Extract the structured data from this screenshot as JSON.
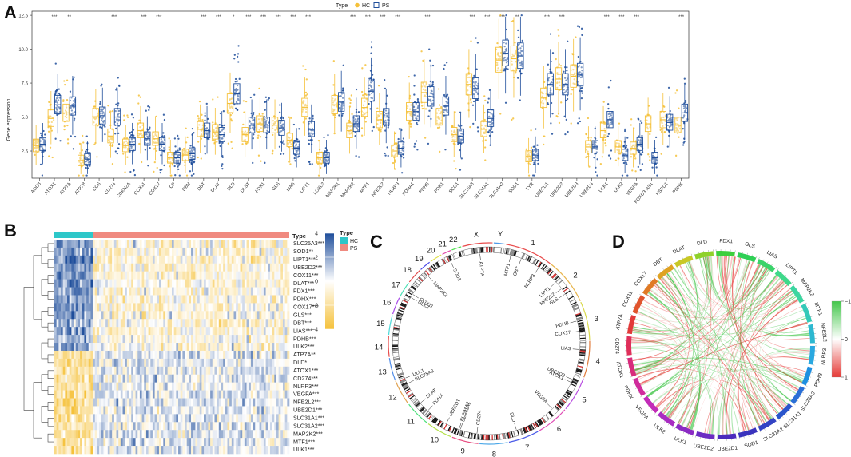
{
  "panels": {
    "a": "A",
    "b": "B",
    "c": "C",
    "d": "D"
  },
  "colors": {
    "hc": "#f5c13a",
    "ps": "#1f4e9b",
    "heat_high": "#1f4e9b",
    "heat_mid": "#ffffff",
    "heat_low": "#f5c13a",
    "annot_hc": "#2ec7c9",
    "annot_ps": "#f08a80",
    "chord_pos": "#e53935",
    "chord_neg": "#43c64a"
  },
  "legend_a": {
    "title": "Type",
    "hc": "HC",
    "ps": "PS"
  },
  "chart_data": [
    {
      "type": "boxplot",
      "title": "",
      "ylabel": "Gene expression",
      "xlabel": "",
      "ylim": [
        0.5,
        12.8
      ],
      "yticks": [
        "2.5",
        "5.0",
        "7.5",
        "10.0",
        "12.5"
      ],
      "ytick_values": [
        2.5,
        5.0,
        7.5,
        10.0,
        12.5
      ],
      "series": [
        {
          "name": "HC"
        },
        {
          "name": "PS"
        }
      ],
      "categories": [
        "AOC3",
        "ATOX1",
        "ATP7A",
        "ATP7B",
        "CCS",
        "CD274",
        "CDKN2A",
        "COX11",
        "COX17",
        "CP",
        "DBH",
        "DBT",
        "DLAT",
        "DLD",
        "DLST",
        "FDX1",
        "GLS",
        "LIAS",
        "LIPT1",
        "LOXL2",
        "MAP2K1",
        "MAP2K2",
        "MTF1",
        "NFE2L2",
        "NLRP3",
        "PDHA1",
        "PDHB",
        "PDK1",
        "SCO1",
        "SLC25A3",
        "SLC31A1",
        "SLC31A2",
        "SOD1",
        "TYR",
        "UBE2D1",
        "UBE2D2",
        "UBE2D3",
        "UBE2D4",
        "ULK1",
        "ULK2",
        "VEGFA",
        "FOXO3-AS1",
        "HSPD1",
        "PDHX"
      ],
      "hc_median": [
        2.9,
        4.9,
        5.3,
        1.8,
        5.0,
        3.6,
        2.9,
        4.0,
        3.4,
        2.0,
        2.2,
        4.1,
        3.9,
        6.0,
        3.7,
        4.5,
        4.4,
        3.3,
        5.7,
        2.0,
        5.9,
        4.0,
        5.7,
        4.8,
        2.5,
        5.4,
        6.8,
        5.0,
        3.7,
        7.4,
        4.1,
        9.2,
        9.3,
        2.1,
        6.4,
        7.8,
        8.0,
        2.8,
        4.0,
        2.8,
        2.7,
        4.5,
        4.8,
        4.4
      ],
      "ps_median": [
        3.0,
        5.9,
        5.8,
        1.9,
        5.1,
        5.0,
        3.0,
        3.4,
        3.0,
        2.0,
        2.3,
        4.0,
        3.7,
        6.7,
        4.4,
        4.4,
        4.2,
        2.7,
        4.1,
        2.0,
        6.1,
        4.5,
        6.9,
        5.0,
        2.7,
        5.4,
        6.5,
        5.8,
        3.6,
        7.1,
        4.9,
        9.7,
        9.5,
        2.2,
        7.4,
        7.4,
        8.1,
        2.8,
        4.8,
        2.2,
        3.0,
        2.0,
        4.6,
        5.3
      ],
      "significance": [
        "",
        "***",
        "**",
        "",
        "",
        "***",
        "",
        "***",
        "***",
        "",
        "",
        "***",
        "***",
        "*",
        "***",
        "***",
        "***",
        "***",
        "***",
        "",
        "",
        "***",
        "***",
        "***",
        "***",
        "",
        "***",
        "",
        "",
        "***",
        "***",
        "***",
        "**",
        "",
        "***",
        "***",
        "",
        "",
        "***",
        "***",
        "***",
        "",
        "",
        "***"
      ]
    },
    {
      "type": "heatmap",
      "legend_title": "Type",
      "legend_labels": [
        "HC",
        "PS"
      ],
      "color_ticks": [
        "4",
        "2",
        "0",
        "−2",
        "−4"
      ],
      "color_tick_values": [
        4,
        2,
        0,
        -2,
        -4
      ],
      "hc_fraction": 0.165,
      "rows": [
        "SLC25A3***",
        "SOD1**",
        "LIPT1***",
        "UBE2D2***",
        "COX11***",
        "DLAT***",
        "FDX1***",
        "PDHX***",
        "COX17***",
        "GLS***",
        "DBT***",
        "LIAS***",
        "PDHB***",
        "ULK2***",
        "ATP7A**",
        "DLD*",
        "ATOX1***",
        "CD274***",
        "NLRP3***",
        "VEGFA***",
        "NFE2L2***",
        "UBE2D1***",
        "SLC31A1***",
        "SLC31A2***",
        "MAP2K2***",
        "MTF1***",
        "ULK1***"
      ],
      "hc_bias": [
        1.2,
        1.2,
        1.4,
        1.3,
        1.4,
        1.2,
        1.1,
        1.1,
        1.2,
        1.0,
        1.0,
        1.1,
        1.0,
        1.0,
        -1.1,
        -1.0,
        -1.1,
        -1.0,
        -1.0,
        -1.1,
        -1.1,
        -1.1,
        -1.0,
        -1.0,
        -1.0,
        -1.0,
        -1.0
      ]
    },
    {
      "type": "circos",
      "chromosomes": [
        "1",
        "2",
        "3",
        "4",
        "5",
        "6",
        "7",
        "8",
        "9",
        "10",
        "11",
        "12",
        "13",
        "14",
        "15",
        "16",
        "17",
        "18",
        "19",
        "20",
        "21",
        "22",
        "X",
        "Y"
      ],
      "chrom_lengths": [
        248,
        242,
        198,
        190,
        181,
        171,
        159,
        145,
        138,
        134,
        135,
        133,
        114,
        107,
        102,
        90,
        83,
        80,
        59,
        64,
        47,
        51,
        156,
        57
      ],
      "genes": [
        {
          "name": "MTF1",
          "chr": "1",
          "pos": 0.15
        },
        {
          "name": "GBT",
          "chr": "1",
          "pos": 0.4
        },
        {
          "name": "NLRP3",
          "chr": "1",
          "pos": 0.85
        },
        {
          "name": "LIPT1",
          "chr": "2",
          "pos": 0.35
        },
        {
          "name": "NFE2L2",
          "chr": "2",
          "pos": 0.55
        },
        {
          "name": "GLS",
          "chr": "2",
          "pos": 0.7
        },
        {
          "name": "PDHB",
          "chr": "3",
          "pos": 0.45
        },
        {
          "name": "COX17",
          "chr": "3",
          "pos": 0.75
        },
        {
          "name": "LIAS",
          "chr": "4",
          "pos": 0.25
        },
        {
          "name": "UBE2D2",
          "chr": "5",
          "pos": 0.15
        },
        {
          "name": "ATOX1",
          "chr": "5",
          "pos": 0.25
        },
        {
          "name": "VEGFA",
          "chr": "6",
          "pos": 0.25
        },
        {
          "name": "DLD",
          "chr": "7",
          "pos": 0.65
        },
        {
          "name": "CD274",
          "chr": "9",
          "pos": 0.1
        },
        {
          "name": "SLC31A1",
          "chr": "9",
          "pos": 0.8
        },
        {
          "name": "SLC31A2",
          "chr": "9",
          "pos": 0.86
        },
        {
          "name": "UBE2D1",
          "chr": "10",
          "pos": 0.4
        },
        {
          "name": "PDHX",
          "chr": "11",
          "pos": 0.3
        },
        {
          "name": "DLAT",
          "chr": "11",
          "pos": 0.75
        },
        {
          "name": "SLC25A3",
          "chr": "12",
          "pos": 0.7
        },
        {
          "name": "ULK1",
          "chr": "12",
          "pos": 0.95
        },
        {
          "name": "ULK2",
          "chr": "17",
          "pos": 0.3
        },
        {
          "name": "COX11",
          "chr": "17",
          "pos": 0.55
        },
        {
          "name": "MAP2K2",
          "chr": "19",
          "pos": 0.1
        },
        {
          "name": "SOD1",
          "chr": "21",
          "pos": 0.5
        },
        {
          "name": "ATP7A",
          "chr": "X",
          "pos": 0.55
        }
      ]
    },
    {
      "type": "chord",
      "color_ticks": [
        "−1",
        "0",
        "1"
      ],
      "color_tick_values": [
        -1,
        0,
        1
      ],
      "genes": [
        "FDX1",
        "GLS",
        "LIAS",
        "LIPT1",
        "MAP2K2",
        "MTF1",
        "NFE2L2",
        "NLRP3",
        "PDHB",
        "SLC25A3",
        "SLC31A1",
        "SLC31A2",
        "SOD1",
        "UBE2D1",
        "UBE2D2",
        "ULK1",
        "ULK2",
        "VEGFA",
        "PDHX",
        "ATOX1",
        "CD274",
        "ATP7A",
        "COX11",
        "COX17",
        "DBT",
        "DLAT",
        "DLD"
      ],
      "segment_colors": [
        "#3ccf3c",
        "#2fcf55",
        "#3ad36a",
        "#3fd88a",
        "#3bd6a0",
        "#34c9b8",
        "#2db8d0",
        "#2aa8e0",
        "#1f8fe0",
        "#2a6fd6",
        "#2a55cc",
        "#3343c4",
        "#3a33bd",
        "#4c2bbd",
        "#6b2bc2",
        "#8b2bc4",
        "#a82cc2",
        "#c22cb8",
        "#d02c9c",
        "#d82c7c",
        "#df2f5a",
        "#e23a3a",
        "#e0542d",
        "#e07a25",
        "#dfa223",
        "#c8c826",
        "#8fd12b"
      ]
    }
  ]
}
